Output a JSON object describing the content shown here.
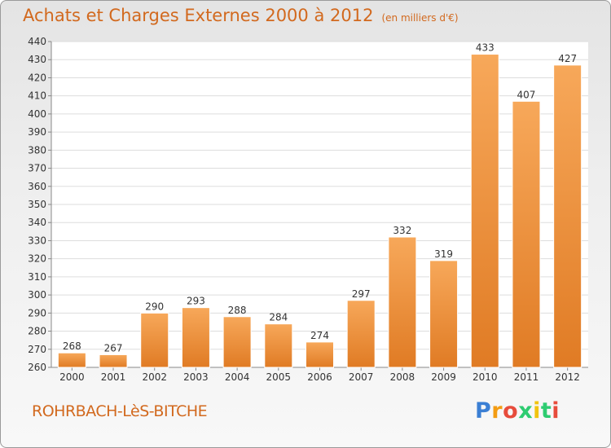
{
  "title": "Achats et Charges Externes 2000 à 2012",
  "unit": "(en milliers d'€)",
  "commune": "ROHRBACH-LèS-BITCHE",
  "logo": {
    "letters": [
      "P",
      "r",
      "o",
      "x",
      "i",
      "t",
      "i"
    ],
    "colors": [
      "#3b7fd4",
      "#f39c12",
      "#e74c3c",
      "#2ecc71",
      "#f1c40f",
      "#2ecc71",
      "#e74c3c"
    ]
  },
  "colors": {
    "bar_light": "#f7a85a",
    "bar_dark": "#e07b24",
    "title": "#d2691e"
  },
  "chart_data": {
    "type": "bar",
    "categories": [
      "2000",
      "2001",
      "2002",
      "2003",
      "2004",
      "2005",
      "2006",
      "2007",
      "2008",
      "2009",
      "2010",
      "2011",
      "2012"
    ],
    "values": [
      268,
      267,
      290,
      293,
      288,
      284,
      274,
      297,
      332,
      319,
      433,
      407,
      427
    ],
    "data_labels": [
      "268",
      "267",
      "290",
      "293",
      "288",
      "284",
      "274",
      "297",
      "332",
      "319",
      "433",
      "407",
      "427"
    ],
    "ylim": [
      260,
      440
    ],
    "yticks": [
      "260",
      "270",
      "280",
      "290",
      "300",
      "310",
      "320",
      "330",
      "340",
      "350",
      "360",
      "370",
      "380",
      "390",
      "400",
      "410",
      "420",
      "430",
      "440"
    ],
    "grid": true,
    "title": "Achats et Charges Externes 2000 à 2012",
    "xlabel": "",
    "ylabel": ""
  }
}
